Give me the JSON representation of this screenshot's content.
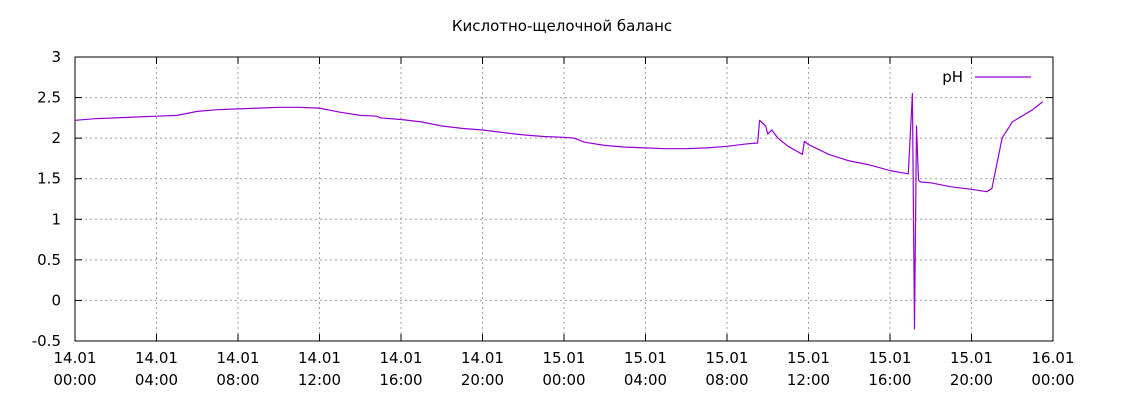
{
  "chart_data": {
    "type": "line",
    "title": "Кислотно-щелочной баланс",
    "xlabel": "",
    "ylabel": "",
    "ylim": [
      -0.5,
      3
    ],
    "yticks": [
      "-0.5",
      "0",
      "0.5",
      "1",
      "1.5",
      "2",
      "2.5",
      "3"
    ],
    "xlim_hours": [
      0,
      48
    ],
    "xticks": [
      {
        "date": "14.01",
        "time": "00:00"
      },
      {
        "date": "14.01",
        "time": "04:00"
      },
      {
        "date": "14.01",
        "time": "08:00"
      },
      {
        "date": "14.01",
        "time": "12:00"
      },
      {
        "date": "14.01",
        "time": "16:00"
      },
      {
        "date": "14.01",
        "time": "20:00"
      },
      {
        "date": "15.01",
        "time": "00:00"
      },
      {
        "date": "15.01",
        "time": "04:00"
      },
      {
        "date": "15.01",
        "time": "08:00"
      },
      {
        "date": "15.01",
        "time": "12:00"
      },
      {
        "date": "15.01",
        "time": "16:00"
      },
      {
        "date": "15.01",
        "time": "20:00"
      },
      {
        "date": "16.01",
        "time": "00:00"
      }
    ],
    "grid": true,
    "legend_position": "top-right",
    "series": [
      {
        "name": "pH",
        "color": "#9400d3",
        "x": [
          "14.01 00:00",
          "14.01 01:00",
          "14.01 02:00",
          "14.01 03:00",
          "14.01 04:00",
          "14.01 05:00",
          "14.01 06:00",
          "14.01 07:00",
          "14.01 08:00",
          "14.01 09:00",
          "14.01 10:00",
          "14.01 11:00",
          "14.01 12:00",
          "14.01 13:00",
          "14.01 14:00",
          "14.01 14:48",
          "14.01 15:00",
          "14.01 16:00",
          "14.01 17:00",
          "14.01 18:00",
          "14.01 19:00",
          "14.01 20:00",
          "14.01 21:00",
          "14.01 22:00",
          "14.01 23:00",
          "15.01 00:00",
          "15.01 00:30",
          "15.01 01:00",
          "15.01 02:00",
          "15.01 03:00",
          "15.01 04:00",
          "15.01 05:00",
          "15.01 06:00",
          "15.01 07:00",
          "15.01 08:00",
          "15.01 09:00",
          "15.01 09:30",
          "15.01 09:36",
          "15.01 09:54",
          "15.01 10:00",
          "15.01 10:12",
          "15.01 10:30",
          "15.01 11:00",
          "15.01 11:42",
          "15.01 11:48",
          "15.01 12:00",
          "15.01 13:00",
          "15.01 14:00",
          "15.01 15:00",
          "15.01 16:00",
          "15.01 16:54",
          "15.01 17:06",
          "15.01 17:12",
          "15.01 17:18",
          "15.01 17:24",
          "15.01 17:30",
          "15.01 18:00",
          "15.01 19:00",
          "15.01 20:00",
          "15.01 20:45",
          "15.01 21:00",
          "15.01 21:30",
          "15.01 22:00",
          "15.01 23:00",
          "15.01 23:30"
        ],
        "values": [
          2.22,
          2.24,
          2.25,
          2.26,
          2.27,
          2.28,
          2.33,
          2.35,
          2.36,
          2.37,
          2.38,
          2.38,
          2.37,
          2.32,
          2.28,
          2.27,
          2.25,
          2.23,
          2.2,
          2.15,
          2.12,
          2.1,
          2.07,
          2.04,
          2.02,
          2.01,
          2.0,
          1.95,
          1.91,
          1.89,
          1.88,
          1.87,
          1.87,
          1.88,
          1.9,
          1.93,
          1.94,
          2.22,
          2.15,
          2.05,
          2.1,
          2.0,
          1.9,
          1.8,
          1.96,
          1.92,
          1.8,
          1.72,
          1.67,
          1.6,
          1.56,
          2.55,
          -0.35,
          2.15,
          1.48,
          1.46,
          1.45,
          1.4,
          1.37,
          1.34,
          1.38,
          2.0,
          2.2,
          2.35,
          2.45
        ]
      }
    ]
  }
}
